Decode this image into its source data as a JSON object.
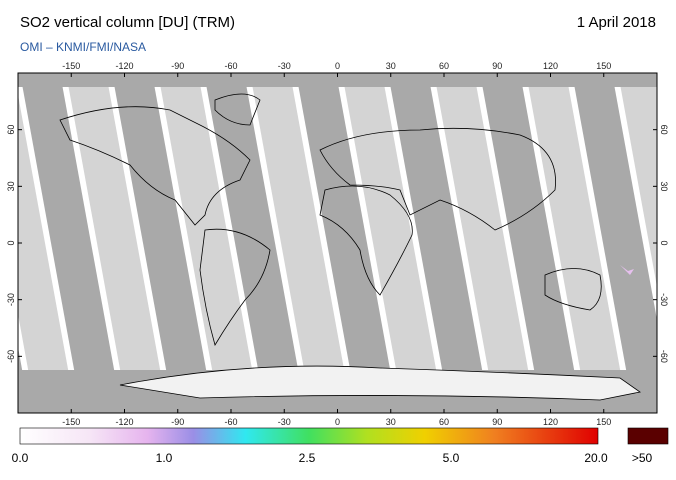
{
  "header": {
    "title": "SO2 vertical column [DU] (TRM)",
    "date": "1 April 2018",
    "subtitle": "OMI  –  KNMI/FMI/NASA"
  },
  "map": {
    "lon_ticks": [
      -150,
      -120,
      -90,
      -60,
      -30,
      0,
      30,
      60,
      90,
      120,
      150
    ],
    "lat_ticks": [
      60,
      30,
      0,
      -30,
      -60
    ]
  },
  "colorbar": {
    "labels": [
      "0.0",
      "1.0",
      "2.5",
      "5.0",
      "20.0",
      ">50"
    ]
  }
}
